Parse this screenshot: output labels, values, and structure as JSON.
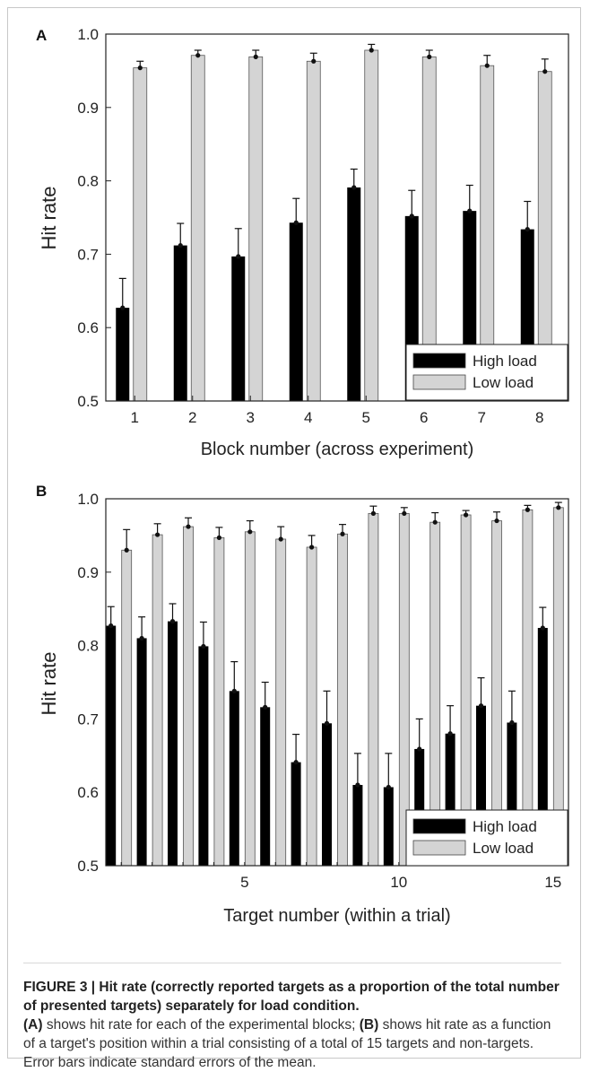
{
  "colors": {
    "high_load": "#000000",
    "low_load": "#d4d4d4",
    "axis": "#222222",
    "frame": "#c8c8c8"
  },
  "chart_data": [
    {
      "panel": "A",
      "type": "bar",
      "xlabel": "Block number (across experiment)",
      "ylabel": "Hit rate",
      "ylim": [
        0.5,
        1.0
      ],
      "yticks": [
        "0.5",
        "0.6",
        "0.7",
        "0.8",
        "0.9",
        "1.0"
      ],
      "categories": [
        "1",
        "2",
        "3",
        "4",
        "5",
        "6",
        "7",
        "8"
      ],
      "legend_position": "bottom-right",
      "grid": false,
      "series": [
        {
          "name": "High load",
          "values": [
            0.627,
            0.712,
            0.697,
            0.743,
            0.791,
            0.752,
            0.759,
            0.734
          ],
          "errors": [
            0.04,
            0.03,
            0.038,
            0.033,
            0.025,
            0.035,
            0.035,
            0.038
          ]
        },
        {
          "name": "Low load",
          "values": [
            0.954,
            0.971,
            0.969,
            0.963,
            0.978,
            0.969,
            0.957,
            0.949
          ],
          "errors": [
            0.009,
            0.007,
            0.009,
            0.011,
            0.008,
            0.009,
            0.014,
            0.017
          ]
        }
      ]
    },
    {
      "panel": "B",
      "type": "bar",
      "xlabel": "Target number (within a trial)",
      "ylabel": "Hit rate",
      "ylim": [
        0.5,
        1.0
      ],
      "yticks": [
        "0.5",
        "0.6",
        "0.7",
        "0.8",
        "0.9",
        "1.0"
      ],
      "x": [
        1,
        2,
        3,
        4,
        5,
        6,
        7,
        8,
        9,
        10,
        11,
        12,
        13,
        14,
        15
      ],
      "xticks": [
        "5",
        "10",
        "15"
      ],
      "legend_position": "bottom-right",
      "grid": false,
      "series": [
        {
          "name": "High load",
          "values": [
            0.827,
            0.81,
            0.833,
            0.799,
            0.738,
            0.716,
            0.641,
            0.694,
            0.61,
            0.607,
            0.659,
            0.68,
            0.718,
            0.695,
            0.824
          ],
          "errors": [
            0.026,
            0.029,
            0.024,
            0.033,
            0.04,
            0.034,
            0.038,
            0.044,
            0.043,
            0.046,
            0.041,
            0.038,
            0.038,
            0.043,
            0.028
          ]
        },
        {
          "name": "Low load",
          "values": [
            0.93,
            0.951,
            0.962,
            0.947,
            0.955,
            0.945,
            0.934,
            0.952,
            0.98,
            0.98,
            0.968,
            0.978,
            0.97,
            0.985,
            0.988
          ],
          "errors": [
            0.028,
            0.015,
            0.012,
            0.014,
            0.015,
            0.017,
            0.016,
            0.013,
            0.01,
            0.008,
            0.013,
            0.006,
            0.012,
            0.006,
            0.007
          ]
        }
      ]
    }
  ],
  "caption": {
    "heading": "FIGURE 3 | Hit rate (correctly reported targets as a proportion of the total number of presented targets) separately for load condition.",
    "part_a_label": "(A)",
    "part_a_text": " shows hit rate for each of the experimental blocks; ",
    "part_b_label": "(B)",
    "part_b_text": " shows hit rate as a function of a target's position within a trial consisting of a total of 15 targets and non-targets. Error bars indicate standard errors of the mean."
  }
}
